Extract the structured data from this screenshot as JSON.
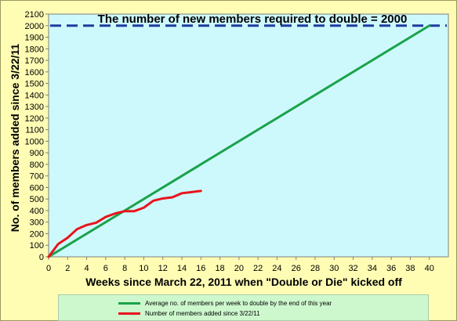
{
  "chart_data": {
    "type": "line",
    "title": "The number of new members required to double = 2000",
    "xlabel": "Weeks since March 22, 2011 when \"Double or Die\" kicked off",
    "ylabel": "No.  of  members added since 3/22/11",
    "xlim": [
      0,
      42
    ],
    "ylim": [
      0,
      2100
    ],
    "x_ticks": [
      0,
      2,
      4,
      6,
      8,
      10,
      12,
      14,
      16,
      18,
      20,
      22,
      24,
      26,
      28,
      30,
      32,
      34,
      36,
      38,
      40
    ],
    "y_ticks": [
      0,
      100,
      200,
      300,
      400,
      500,
      600,
      700,
      800,
      900,
      1000,
      1100,
      1200,
      1300,
      1400,
      1500,
      1600,
      1700,
      1800,
      1900,
      2000,
      2100
    ],
    "grid": false,
    "legend_position": "bottom",
    "reference_line": {
      "y": 2000,
      "color": "#1f3c9e",
      "style": "dashed"
    },
    "series": [
      {
        "name": "Average no. of members per week to double by the end of this year",
        "color": "#1aa24a",
        "x": [
          0,
          40
        ],
        "y": [
          0,
          2000
        ]
      },
      {
        "name": "Number of members added since 3/22/11",
        "color": "#e8141c",
        "x": [
          0,
          1,
          2,
          3,
          4,
          5,
          6,
          7,
          8,
          9,
          10,
          11,
          12,
          13,
          14,
          15,
          16
        ],
        "y": [
          0,
          110,
          165,
          240,
          275,
          295,
          345,
          375,
          395,
          395,
          425,
          485,
          505,
          515,
          550,
          560,
          570
        ]
      }
    ]
  }
}
